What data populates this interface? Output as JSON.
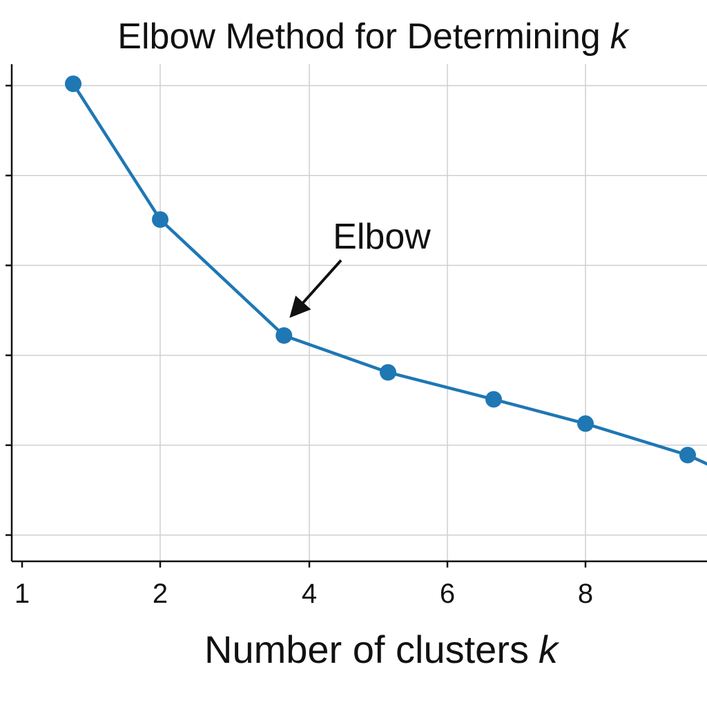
{
  "chart_data": {
    "type": "line",
    "title": "Elbow Method for Determining",
    "title_var": "k",
    "xlabel": "Number of clusters",
    "xlabel_var": "k",
    "ylabel": "",
    "xticks": [
      1,
      2,
      4,
      6,
      8
    ],
    "xlim": [
      1,
      9.88
    ],
    "ylim": [
      0,
      6
    ],
    "grid": true,
    "legend": "none",
    "series": [
      {
        "color": "#1f77b4",
        "x": [
          1.37,
          2.0,
          3.66,
          5.14,
          6.67,
          8.0,
          9.48,
          9.88
        ],
        "y": [
          5.02,
          3.51,
          2.22,
          1.81,
          1.51,
          1.24,
          0.89,
          0.75
        ],
        "markers": [
          true,
          true,
          true,
          true,
          true,
          true,
          true,
          false
        ]
      }
    ],
    "annotations": [
      {
        "text": "Elbow",
        "arrow_to": [
          3.66,
          2.22
        ]
      }
    ]
  }
}
